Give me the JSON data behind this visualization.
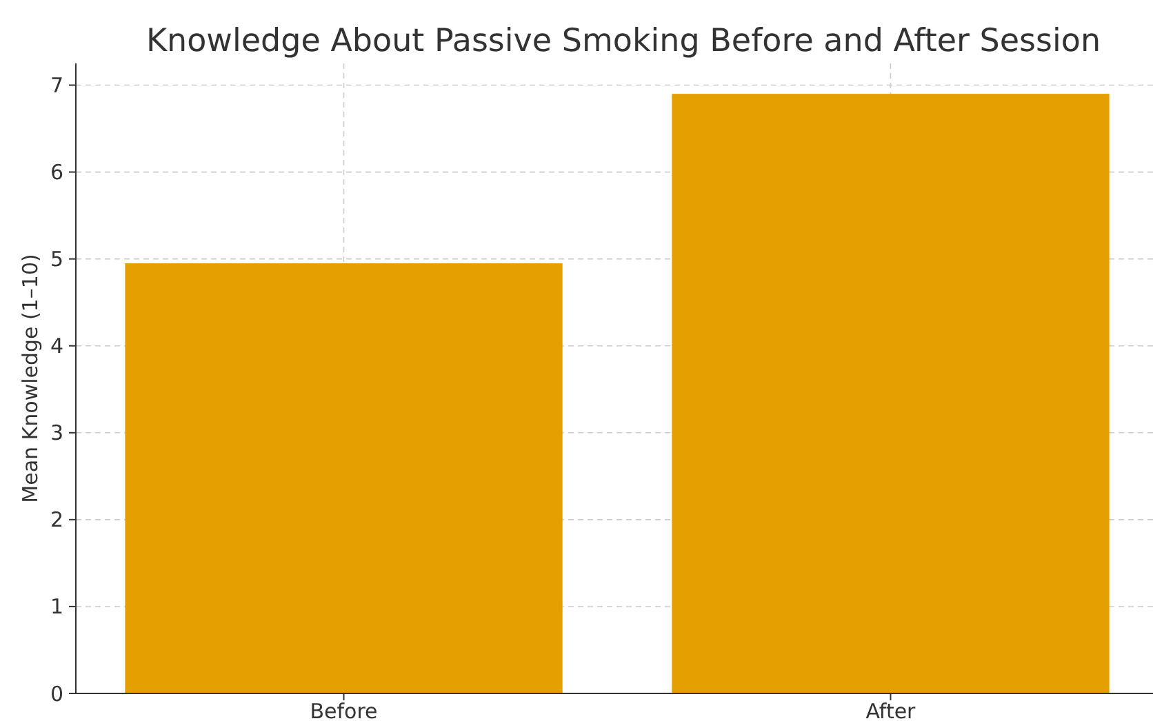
{
  "chart_data": {
    "type": "bar",
    "title": "Knowledge About Passive Smoking Before and After Session",
    "ylabel": "Mean Knowledge (1–10)",
    "categories": [
      "Before",
      "After"
    ],
    "values": [
      4.95,
      6.9
    ],
    "color": "#e69f00",
    "ylim": [
      0,
      7.25
    ],
    "yticks": [
      0,
      1,
      2,
      3,
      4,
      5,
      6,
      7
    ],
    "grid": true
  }
}
